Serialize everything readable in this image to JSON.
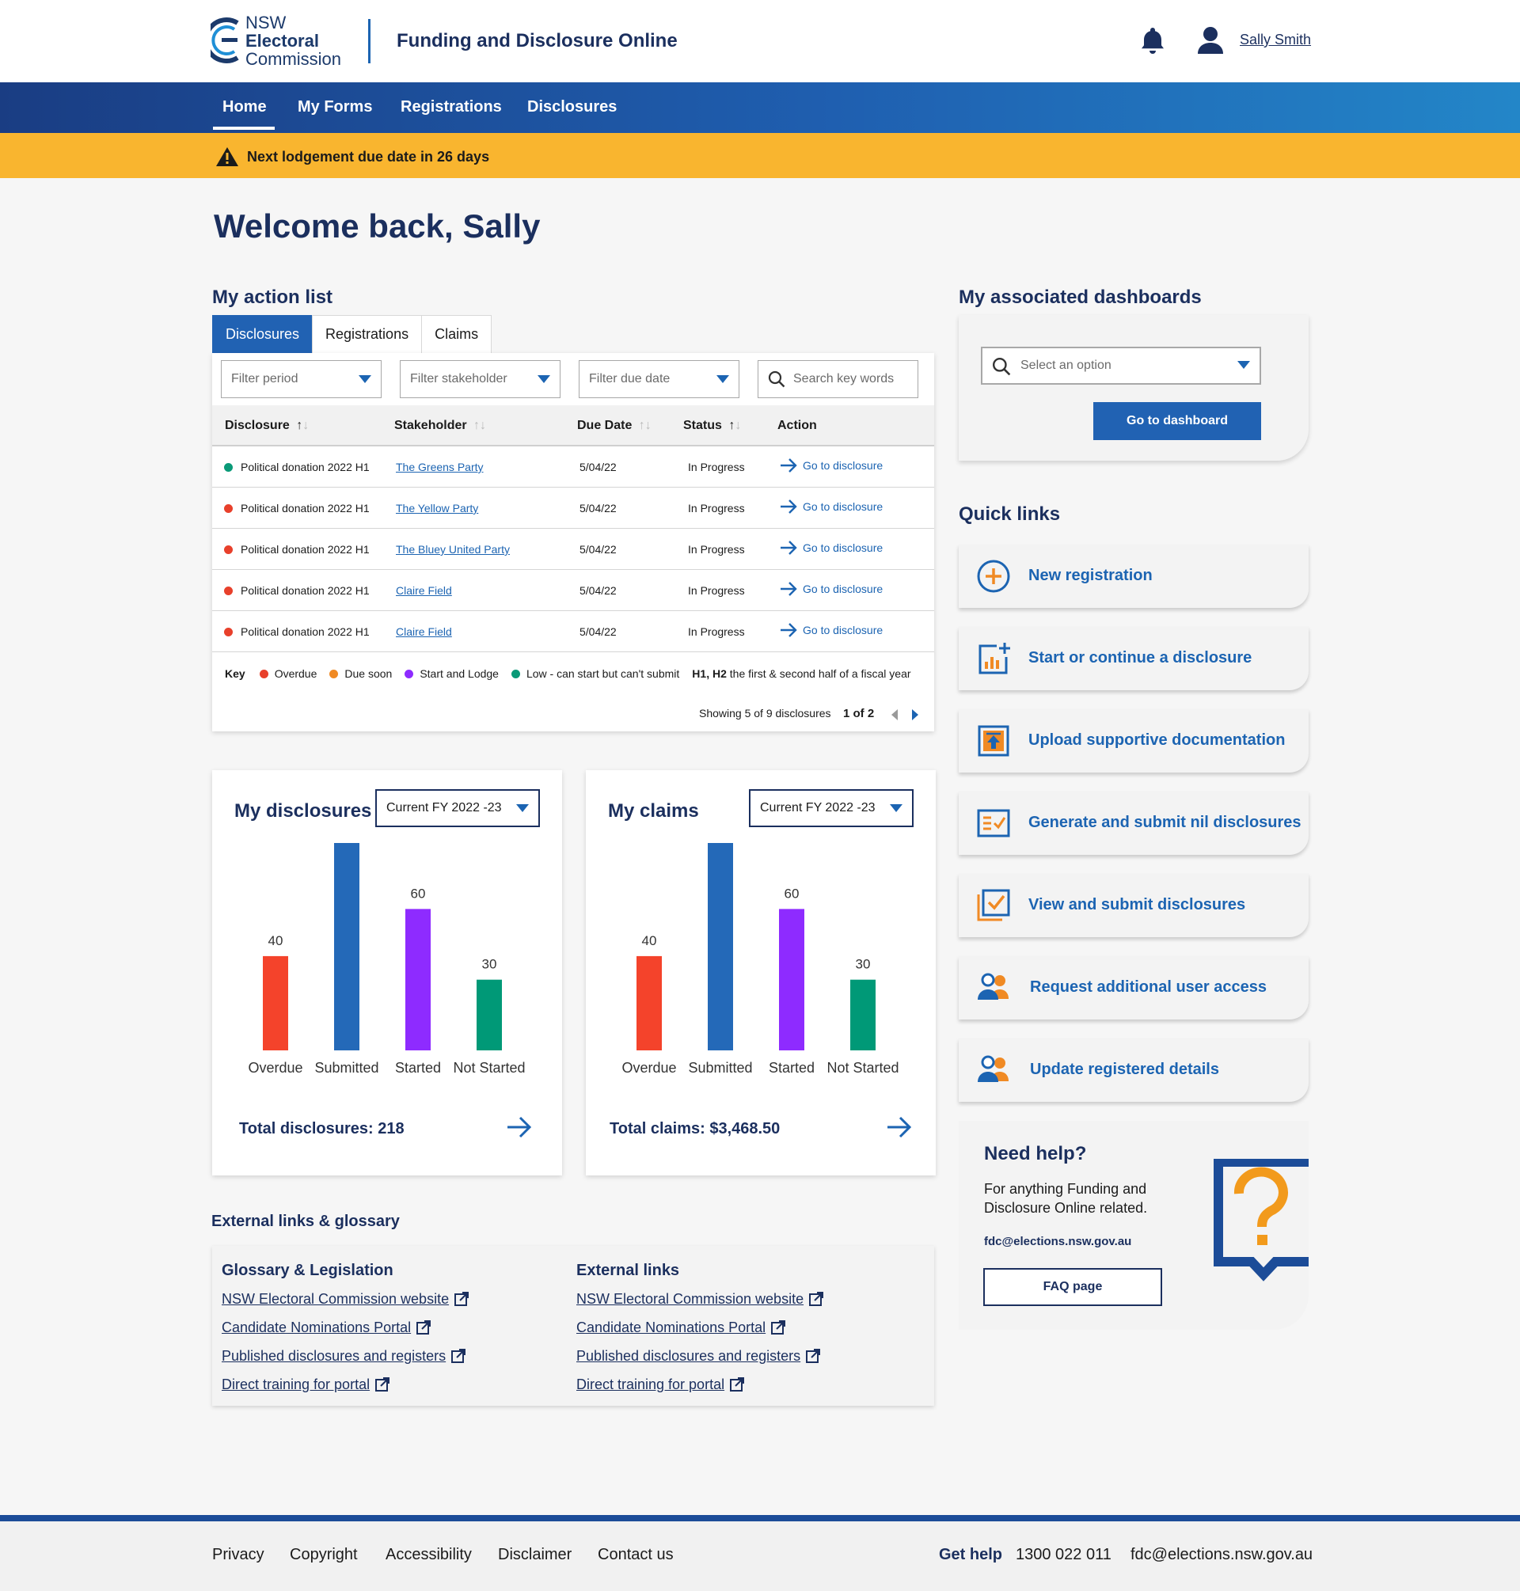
{
  "brand": {
    "logo_line1": "NSW",
    "logo_line2": "Electoral",
    "logo_line3": "Commission",
    "app_title": "Funding and Disclosure Online",
    "colors": {
      "primary": "#2162b3",
      "navy": "#1b2f5e",
      "alert": "#f9b52f"
    }
  },
  "header": {
    "user_name": "Sally Smith",
    "notification_icon": "bell-icon",
    "user_icon": "user-icon"
  },
  "nav": {
    "items": [
      "Home",
      "My Forms",
      "Registrations",
      "Disclosures"
    ],
    "active": "Home"
  },
  "alert": {
    "text": "Next lodgement due date in 26 days",
    "icon": "warning-icon"
  },
  "welcome": "Welcome back, Sally",
  "action_list": {
    "title": "My action list",
    "tabs": [
      "Disclosures",
      "Registrations",
      "Claims"
    ],
    "active_tab": "Disclosures",
    "filters": {
      "period": "Filter period",
      "stakeholder": "Filter stakeholder",
      "due_date": "Filter due date",
      "search": "Search key words"
    },
    "columns": [
      "Disclosure",
      "Stakeholder",
      "Due Date",
      "Status",
      "Action"
    ],
    "rows": [
      {
        "disclosure": "Political donation 2022 H1",
        "stakeholder": "The Greens Party",
        "due": "5/04/22",
        "status": "In Progress",
        "action": "Go to disclosure",
        "dot": "#0a9a78"
      },
      {
        "disclosure": "Political donation 2022 H1",
        "stakeholder": "The Yellow Party",
        "due": "5/04/22",
        "status": "In Progress",
        "action": "Go to disclosure",
        "dot": "#e8402b"
      },
      {
        "disclosure": "Political donation 2022 H1",
        "stakeholder": "The Bluey United Party",
        "due": "5/04/22",
        "status": "In Progress",
        "action": "Go to disclosure",
        "dot": "#e8402b"
      },
      {
        "disclosure": "Political donation 2022 H1",
        "stakeholder": "Claire Field",
        "due": "5/04/22",
        "status": "In Progress",
        "action": "Go to disclosure",
        "dot": "#e8402b"
      },
      {
        "disclosure": "Political donation 2022 H1",
        "stakeholder": "Claire Field",
        "due": "5/04/22",
        "status": "In Progress",
        "action": "Go to disclosure",
        "dot": "#e8402b"
      }
    ],
    "key": {
      "label": "Key",
      "items": [
        {
          "label": "Overdue",
          "color": "#e8402b"
        },
        {
          "label": "Due soon",
          "color": "#f08a24"
        },
        {
          "label": "Start and Lodge",
          "color": "#8e2bff"
        },
        {
          "label": "Low - can start but can't submit",
          "color": "#0a9a78"
        }
      ],
      "note_bold": "H1, H2",
      "note": " the first & second half of a fiscal year"
    },
    "pager": {
      "showing": "Showing 5 of 9 disclosures",
      "page": "1 of 2"
    }
  },
  "chart_data": [
    {
      "type": "bar",
      "title": "My disclosures",
      "period": "Current FY 2022 -23",
      "categories": [
        "Overdue",
        "Submitted",
        "Started",
        "Not Started"
      ],
      "values": [
        40,
        88,
        60,
        30
      ],
      "colors": [
        "#f4432b",
        "#2469b8",
        "#8e2bff",
        "#009977"
      ],
      "total": "Total disclosures: 218"
    },
    {
      "type": "bar",
      "title": "My claims",
      "period": "Current FY 2022 -23",
      "categories": [
        "Overdue",
        "Submitted",
        "Started",
        "Not Started"
      ],
      "values": [
        40,
        88,
        60,
        30
      ],
      "colors": [
        "#f4432b",
        "#2469b8",
        "#8e2bff",
        "#009977"
      ],
      "total": "Total claims: $3,468.50"
    }
  ],
  "external": {
    "title": "External links & glossary",
    "glossary_title": "Glossary & Legislation",
    "glossary_links": [
      "NSW Electoral Commission website",
      "Candidate Nominations Portal",
      "Published disclosures and registers",
      "Direct training for portal"
    ],
    "links_title": "External links",
    "links": [
      "NSW Electoral Commission website",
      "Candidate Nominations Portal",
      "Published disclosures and registers",
      "Direct training for portal"
    ]
  },
  "dashboards": {
    "title": "My associated dashboards",
    "placeholder": "Select an option",
    "button": "Go to dashboard"
  },
  "quick_links": {
    "title": "Quick links",
    "items": [
      {
        "label": "New registration",
        "icon": "plus-circle-icon"
      },
      {
        "label": "Start or continue a disclosure",
        "icon": "chart-plus-icon"
      },
      {
        "label": "Upload supportive documentation",
        "icon": "upload-icon"
      },
      {
        "label": "Generate and submit nil disclosures",
        "icon": "checklist-icon"
      },
      {
        "label": "View and submit disclosures",
        "icon": "check-doc-icon"
      },
      {
        "label": "Request additional user access",
        "icon": "users-icon"
      },
      {
        "label": "Update registered details",
        "icon": "users-icon"
      }
    ]
  },
  "help": {
    "title": "Need help?",
    "text_line1": "For anything Funding and",
    "text_line2": "Disclosure Online related.",
    "email": "fdc@elections.nsw.gov.au",
    "button": "FAQ page"
  },
  "footer": {
    "links": [
      "Privacy",
      "Copyright",
      "Accessibility",
      "Disclaimer",
      "Contact us"
    ],
    "get_help": "Get help",
    "phone": "1300 022 011",
    "email": "fdc@elections.nsw.gov.au"
  }
}
